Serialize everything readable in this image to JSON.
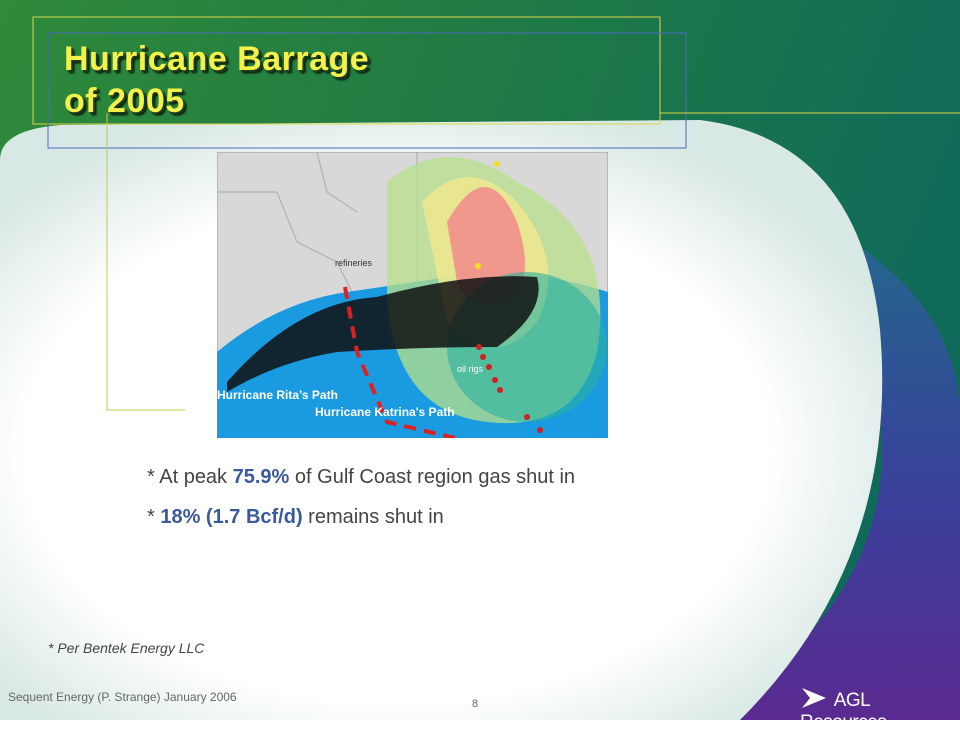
{
  "header": {
    "title": [
      "Hurricane Barrage",
      "of 2005"
    ]
  },
  "map": {
    "labels": [
      "refineries",
      "oil rigs",
      "Hurricane Rita’s Path",
      "Hurricane Katrina's Path"
    ]
  },
  "body": {
    "bullets": [
      [
        "* At peak ",
        "75.9%",
        " of Gulf Coast region gas shut in"
      ],
      [
        "* ",
        "18% (1.7 Bcf/d)",
        " remains shut in"
      ]
    ],
    "footnote": "* Per Bentek Energy LLC"
  },
  "footer": {
    "text": "Sequent Energy (P. Strange) January 2006",
    "page": "8",
    "logo": "AGL Resources"
  }
}
